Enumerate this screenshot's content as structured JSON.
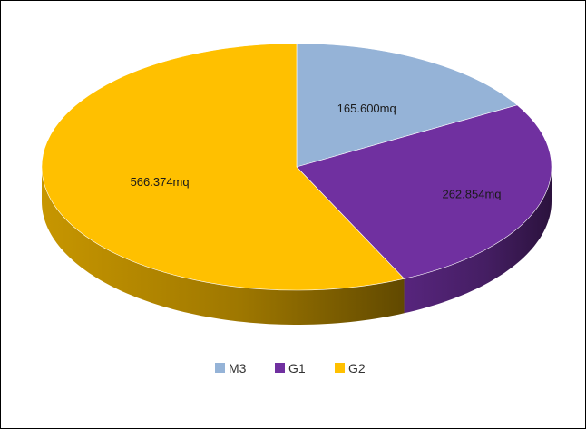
{
  "chart_data": {
    "type": "pie",
    "three_d": true,
    "legend_position": "bottom",
    "slices": [
      {
        "name": "M3",
        "label": "165.600mq",
        "value": 165600,
        "color": "#95B3D7"
      },
      {
        "name": "G1",
        "label": "262.854mq",
        "value": 262854,
        "color": "#7030A0"
      },
      {
        "name": "G2",
        "label": "566.374mq",
        "value": 566374,
        "color": "#FFC000"
      }
    ]
  }
}
